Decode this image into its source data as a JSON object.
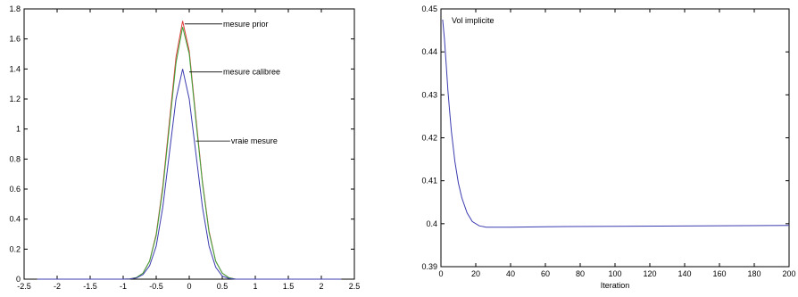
{
  "chart_data": [
    {
      "type": "line",
      "xlim": [
        -2.5,
        2.5
      ],
      "ylim": [
        0,
        1.8
      ],
      "x_ticks": [
        -2.5,
        -2,
        -1.5,
        -1,
        -0.5,
        0,
        0.5,
        1,
        1.5,
        2,
        2.5
      ],
      "y_ticks": [
        0,
        0.2,
        0.4,
        0.6,
        0.8,
        1,
        1.2,
        1.4,
        1.6,
        1.8
      ],
      "x_tick_labels": [
        "-2.5",
        "-2",
        "-1.5",
        "-1",
        "-0.5",
        "0",
        "0.5",
        "1",
        "1.5",
        "2",
        "2.5"
      ],
      "y_tick_labels": [
        "0",
        "0.2",
        "0.4",
        "0.6",
        "0.8",
        "1",
        "1.2",
        "1.4",
        "1.6",
        "1.8"
      ],
      "grid": false,
      "x": [
        -2.3,
        -1.0,
        -0.9,
        -0.8,
        -0.7,
        -0.6,
        -0.5,
        -0.4,
        -0.3,
        -0.2,
        -0.1,
        0.0,
        0.1,
        0.2,
        0.3,
        0.4,
        0.5,
        0.6,
        0.7,
        2.3
      ],
      "series": [
        {
          "color": "#e03a3a",
          "values": [
            0,
            0,
            0.002,
            0.01,
            0.04,
            0.12,
            0.3,
            0.62,
            1.05,
            1.48,
            1.72,
            1.52,
            1.08,
            0.65,
            0.32,
            0.12,
            0.04,
            0.01,
            0,
            0
          ],
          "label": "mesure prior"
        },
        {
          "color": "#3aa63a",
          "values": [
            0,
            0,
            0.002,
            0.01,
            0.04,
            0.12,
            0.29,
            0.6,
            1.02,
            1.44,
            1.68,
            1.5,
            1.06,
            0.64,
            0.31,
            0.12,
            0.04,
            0.01,
            0,
            0
          ],
          "label": ""
        },
        {
          "color": "#3b3bb0",
          "values": [
            0,
            0,
            0.002,
            0.008,
            0.03,
            0.09,
            0.22,
            0.48,
            0.84,
            1.2,
            1.4,
            1.2,
            0.84,
            0.48,
            0.22,
            0.08,
            0.02,
            0.005,
            0,
            0
          ],
          "label": "mesure calibree"
        }
      ],
      "annotations": [
        {
          "text": "mesure prior",
          "x": -0.07,
          "y": 1.7,
          "text_x": 0.5,
          "text_y": 1.7
        },
        {
          "text": "mesure calibree",
          "x": 0.0,
          "y": 1.38,
          "text_x": 0.5,
          "text_y": 1.38
        },
        {
          "text": "vraie mesure",
          "x": 0.1,
          "y": 0.92,
          "text_x": 0.62,
          "text_y": 0.92
        }
      ]
    },
    {
      "type": "line",
      "title": "Vol implicite",
      "xlabel": "Iteration",
      "xlim": [
        0,
        200
      ],
      "ylim": [
        0.39,
        0.45
      ],
      "x_ticks": [
        0,
        20,
        40,
        60,
        80,
        100,
        120,
        140,
        160,
        180,
        200
      ],
      "y_ticks": [
        0.39,
        0.4,
        0.41,
        0.42,
        0.43,
        0.44,
        0.45
      ],
      "x_tick_labels": [
        "0",
        "20",
        "40",
        "60",
        "80",
        "100",
        "120",
        "140",
        "160",
        "180",
        "200"
      ],
      "y_tick_labels": [
        "0.39",
        "0.4",
        "0.41",
        "0.42",
        "0.43",
        "0.44",
        "0.45"
      ],
      "grid": false,
      "x": [
        1,
        2,
        3,
        4,
        5,
        6,
        8,
        10,
        12,
        15,
        18,
        22,
        26,
        30,
        40,
        60,
        100,
        150,
        200
      ],
      "series": [
        {
          "color": "#3b3bb0",
          "values": [
            0.4475,
            0.443,
            0.437,
            0.431,
            0.426,
            0.4215,
            0.4145,
            0.4095,
            0.406,
            0.4025,
            0.4005,
            0.3995,
            0.3992,
            0.3992,
            0.3992,
            0.3993,
            0.3994,
            0.3995,
            0.3996
          ]
        }
      ]
    }
  ]
}
